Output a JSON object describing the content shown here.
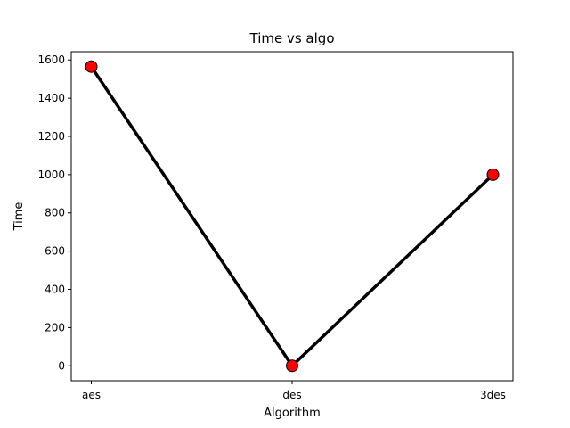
{
  "chart_data": {
    "type": "line",
    "title": "Time vs algo",
    "xlabel": "Algorithm",
    "ylabel": "Time",
    "categories": [
      "aes",
      "des",
      "3des"
    ],
    "series": [
      {
        "values": [
          1565,
          0,
          1000
        ],
        "line_color": "#000000",
        "marker_color": "#ff0000"
      }
    ],
    "ylim": [
      -78,
      1643
    ],
    "yticks": [
      0,
      200,
      400,
      600,
      800,
      1000,
      1200,
      1400,
      1600
    ],
    "grid": false
  }
}
